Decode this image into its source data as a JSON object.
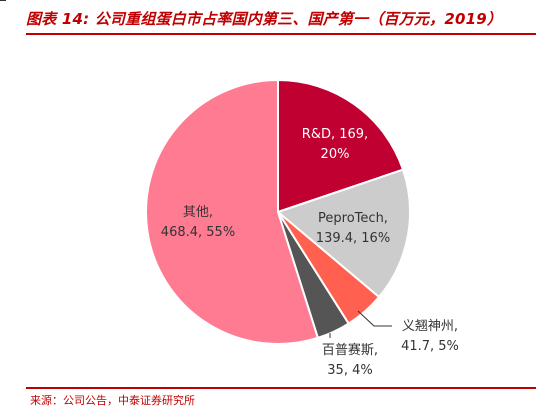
{
  "header": {
    "title": "图表 14: 公司重组蛋白市占率国内第三、国产第一（百万元，2019）"
  },
  "footer": {
    "source": "来源：公司公告，中泰证券研究所"
  },
  "chart_data": {
    "type": "pie",
    "slices": [
      {
        "name": "R&D",
        "value": 169,
        "percent": "20%",
        "color": "#c00030",
        "label_lines": [
          "R&D, 169,",
          "20%"
        ],
        "label_color": "#ffffff"
      },
      {
        "name": "PeproTech",
        "value": 139.4,
        "percent": "16%",
        "color": "#cccccc",
        "label_lines": [
          "PeproTech,",
          "139.4, 16%"
        ],
        "label_color": "#333333"
      },
      {
        "name": "义翘神州",
        "value": 41.7,
        "percent": "5%",
        "color": "#ff6050",
        "label_lines": [
          "义翘神州,",
          "41.7, 5%"
        ],
        "label_color": "#333333"
      },
      {
        "name": "百普赛斯",
        "value": 35,
        "percent": "4%",
        "color": "#555555",
        "label_lines": [
          "百普赛斯,",
          "35, 4%"
        ],
        "label_color": "#333333"
      },
      {
        "name": "其他",
        "value": 468.4,
        "percent": "55%",
        "color": "#ff7b92",
        "label_lines": [
          "其他,",
          "468.4, 55%"
        ],
        "label_color": "#333333"
      }
    ],
    "start_angle_deg": 0,
    "direction": "clockwise",
    "legend": "none"
  }
}
